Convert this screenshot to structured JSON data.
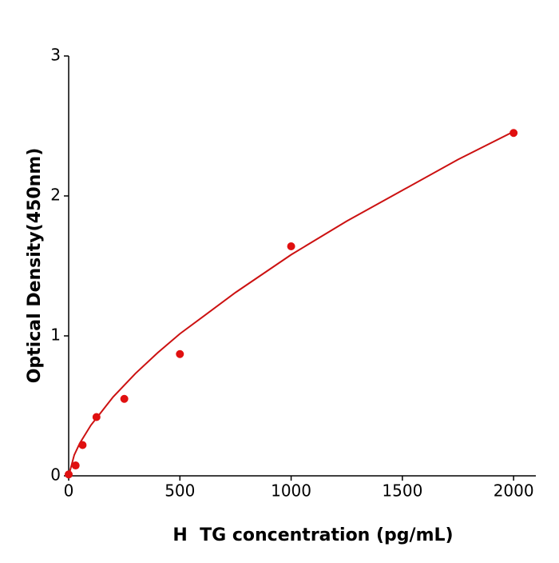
{
  "chart_data": {
    "type": "scatter",
    "x_label": "H  TG concentration (pg/mL)",
    "y_label": "Optical Density(450nm)",
    "xlim": [
      0,
      2100
    ],
    "xticks": [
      0,
      500,
      1000,
      1500,
      2000
    ],
    "ylim": [
      0,
      3
    ],
    "yticks": [
      0,
      1,
      2,
      3
    ],
    "series": [
      {
        "type": "line",
        "color": "#cc1111",
        "x": [
          0,
          25,
          50,
          100,
          200,
          300,
          400,
          500,
          750,
          1000,
          1250,
          1500,
          1750,
          2000
        ],
        "values": [
          0,
          0.149,
          0.233,
          0.362,
          0.564,
          0.731,
          0.879,
          1.015,
          1.31,
          1.58,
          1.82,
          2.04,
          2.26,
          2.46
        ]
      },
      {
        "type": "scatter",
        "color": "#e01010",
        "x": [
          0,
          31.25,
          62.5,
          125,
          250,
          500,
          1000,
          2000
        ],
        "values": [
          0.01,
          0.074,
          0.22,
          0.42,
          0.55,
          0.87,
          1.64,
          2.45
        ]
      }
    ]
  }
}
